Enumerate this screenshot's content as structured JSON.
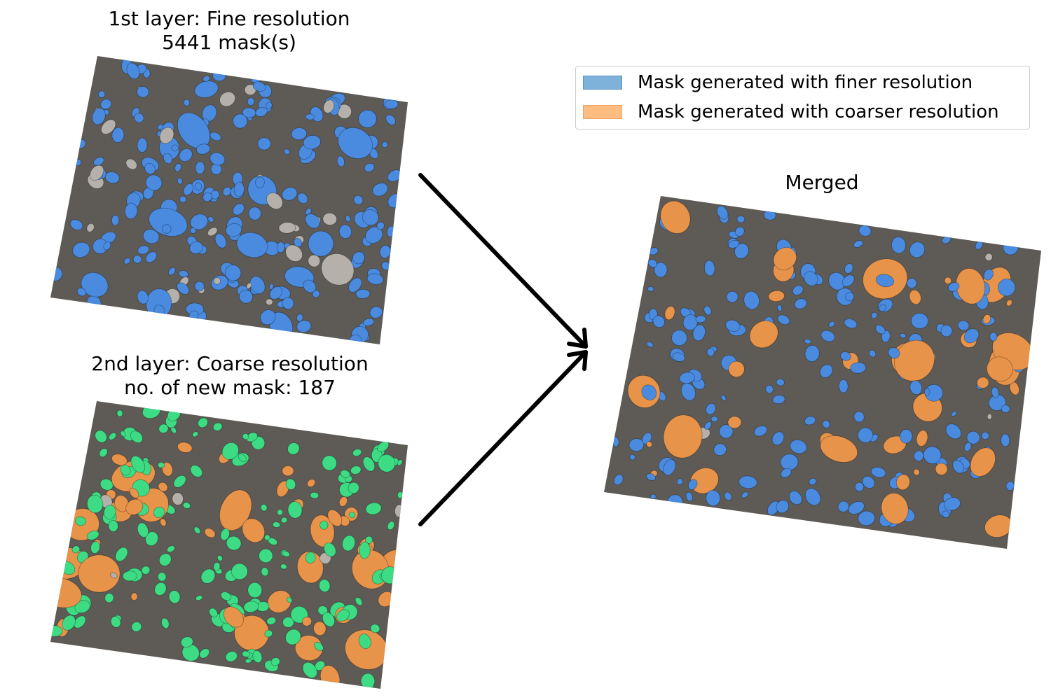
{
  "panels": {
    "fine": {
      "title_line1": "1st layer: Fine resolution",
      "title_line2": "5441 mask(s)"
    },
    "coarse": {
      "title_line1": "2nd layer: Coarse resolution",
      "title_line2": "no. of new mask: 187"
    },
    "merged": {
      "title": "Merged"
    }
  },
  "legend": {
    "items": [
      {
        "label": "Mask generated with finer resolution",
        "color": "#7fb2db",
        "border": "#5a93c6"
      },
      {
        "label": "Mask generated with coarser resolution",
        "color": "#ffbd82",
        "border": "#f0a060"
      }
    ]
  },
  "colors": {
    "fine_mask": "#4a8be0",
    "coarse_new_mask": "#e8934a",
    "coarse_existing_mask": "#3ddc84",
    "gravel_bed": "#5e5a55",
    "unmasked_stone": "#b5b1aa",
    "arrow": "#000000"
  }
}
